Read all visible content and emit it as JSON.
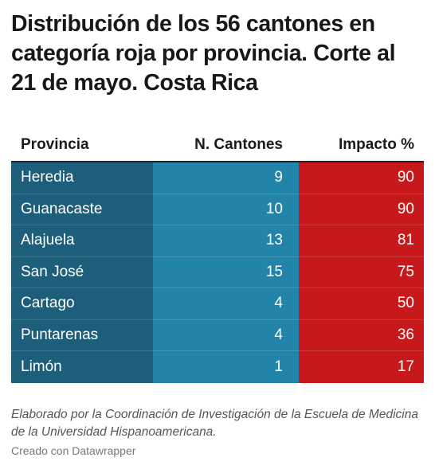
{
  "chart_data": {
    "type": "table",
    "title": "Distribución de los 56 cantones en categoría roja por provincia. Corte al 21 de mayo. Costa Rica",
    "columns": [
      "Provincia",
      "N. Cantones",
      "Impacto %"
    ],
    "rows": [
      {
        "provincia": "Heredia",
        "cantones": 9,
        "impacto": 90
      },
      {
        "provincia": "Guanacaste",
        "cantones": 10,
        "impacto": 90
      },
      {
        "provincia": "Alajuela",
        "cantones": 13,
        "impacto": 81
      },
      {
        "provincia": "San José",
        "cantones": 15,
        "impacto": 75
      },
      {
        "provincia": "Cartago",
        "cantones": 4,
        "impacto": 50
      },
      {
        "provincia": "Puntarenas",
        "cantones": 4,
        "impacto": 36
      },
      {
        "provincia": "Limón",
        "cantones": 1,
        "impacto": 17
      }
    ],
    "colors": {
      "provincia": "#1d5f7b",
      "cantones": "#2384a9",
      "impacto": "#c7191b"
    }
  },
  "footer": {
    "note": "Elaborado por la Coordinación de Investigación de la Escuela de Medicina de la Universidad Hispanoamericana.",
    "credit": "Creado con Datawrapper"
  }
}
